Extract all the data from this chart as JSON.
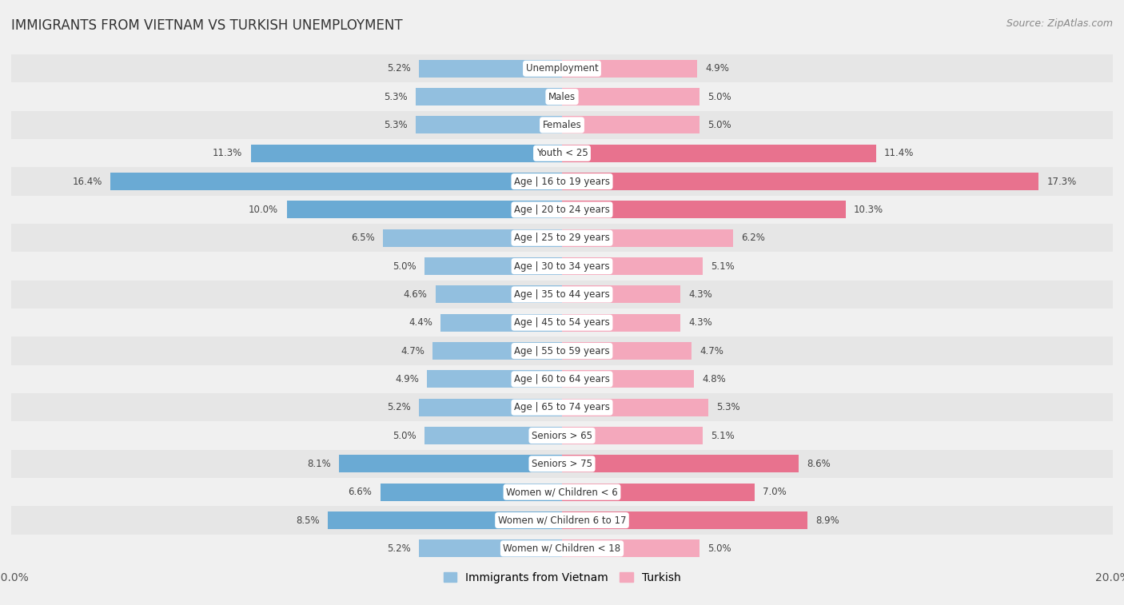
{
  "title": "IMMIGRANTS FROM VIETNAM VS TURKISH UNEMPLOYMENT",
  "source": "Source: ZipAtlas.com",
  "categories": [
    "Unemployment",
    "Males",
    "Females",
    "Youth < 25",
    "Age | 16 to 19 years",
    "Age | 20 to 24 years",
    "Age | 25 to 29 years",
    "Age | 30 to 34 years",
    "Age | 35 to 44 years",
    "Age | 45 to 54 years",
    "Age | 55 to 59 years",
    "Age | 60 to 64 years",
    "Age | 65 to 74 years",
    "Seniors > 65",
    "Seniors > 75",
    "Women w/ Children < 6",
    "Women w/ Children 6 to 17",
    "Women w/ Children < 18"
  ],
  "vietnam_values": [
    5.2,
    5.3,
    5.3,
    11.3,
    16.4,
    10.0,
    6.5,
    5.0,
    4.6,
    4.4,
    4.7,
    4.9,
    5.2,
    5.0,
    8.1,
    6.6,
    8.5,
    5.2
  ],
  "turkish_values": [
    4.9,
    5.0,
    5.0,
    11.4,
    17.3,
    10.3,
    6.2,
    5.1,
    4.3,
    4.3,
    4.7,
    4.8,
    5.3,
    5.1,
    8.6,
    7.0,
    8.9,
    5.0
  ],
  "vietnam_color": "#92bfdf",
  "turkish_color": "#f4a8bc",
  "highlight_vietnam_color": "#6aaad4",
  "highlight_turkish_color": "#e8728e",
  "background_color": "#f0f0f0",
  "row_colors": [
    "#e6e6e6",
    "#f0f0f0"
  ],
  "max_value": 20.0,
  "label_fontsize": 8.5,
  "title_fontsize": 12,
  "legend_fontsize": 10,
  "bar_height": 0.62,
  "highlight_indices": [
    3,
    4,
    5,
    14,
    15,
    16
  ]
}
